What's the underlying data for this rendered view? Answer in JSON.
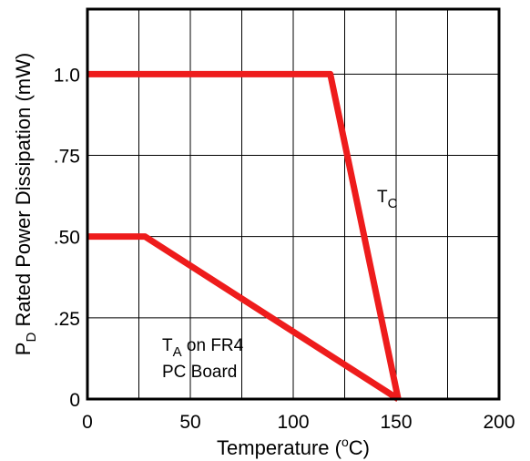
{
  "chart_data": {
    "type": "line",
    "xlabel": "Temperature (°C)",
    "xlabel_parts": {
      "pre": "Temperature (",
      "sup": "o",
      "post": "C)"
    },
    "ylabel": "PD Rated Power Dissipation (mW)",
    "ylabel_parts": {
      "main": "P",
      "sub": "D",
      "rest": " Rated Power Dissipation (mW)"
    },
    "xlim": [
      0,
      200
    ],
    "ylim": [
      0,
      1.2
    ],
    "x_ticks": [
      {
        "value": 0,
        "label": "0"
      },
      {
        "value": 50,
        "label": "50"
      },
      {
        "value": 100,
        "label": "100"
      },
      {
        "value": 150,
        "label": "150"
      },
      {
        "value": 200,
        "label": "200"
      }
    ],
    "y_ticks": [
      {
        "value": 0,
        "label": "0"
      },
      {
        "value": 0.25,
        "label": ".25"
      },
      {
        "value": 0.5,
        "label": ".50"
      },
      {
        "value": 0.75,
        "label": ".75"
      },
      {
        "value": 1.0,
        "label": "1.0"
      }
    ],
    "x_grid": [
      25,
      50,
      75,
      100,
      125,
      150,
      175
    ],
    "y_grid": [
      0.25,
      0.5,
      0.75,
      1.0
    ],
    "grid": true,
    "line_color": "#ee1c1c",
    "series": [
      {
        "name": "TC",
        "name_parts": {
          "main": "T",
          "sub": "C"
        },
        "points": [
          [
            0,
            1.0
          ],
          [
            118,
            1.0
          ],
          [
            151,
            0
          ]
        ]
      },
      {
        "name": "TA on FR4 PC Board",
        "name_parts": {
          "main": "T",
          "sub": "A",
          "rest": " on FR4",
          "line2": "PC Board"
        },
        "points": [
          [
            0,
            0.5
          ],
          [
            28,
            0.5
          ],
          [
            151,
            0
          ]
        ]
      }
    ]
  }
}
